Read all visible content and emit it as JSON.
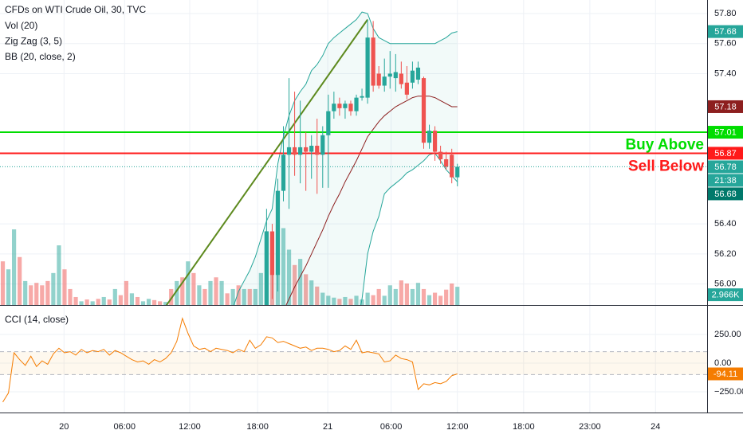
{
  "chart_data": [
    {
      "type": "candlestick",
      "title": "CFDs on WTI Crude Oil, 30, TVC",
      "indicators": [
        "Vol (20)",
        "Zig Zag (3, 5)",
        "BB (20, close, 2)"
      ],
      "x": [
        0,
        1,
        2,
        3,
        4,
        5,
        6,
        7,
        8,
        9,
        10,
        11,
        12,
        13,
        14,
        15,
        16,
        17,
        18,
        19,
        20,
        21,
        22,
        23,
        24,
        25,
        26,
        27,
        28,
        29,
        30,
        31,
        32,
        33,
        34,
        35,
        36,
        37,
        38,
        39,
        40,
        41,
        42,
        43,
        44,
        45,
        46,
        47,
        48,
        49,
        50,
        51,
        52,
        53,
        54,
        55,
        56,
        57,
        58,
        59,
        60,
        61,
        62,
        63,
        64,
        65,
        66,
        67,
        68,
        69,
        70,
        71,
        72,
        73,
        74,
        75,
        76,
        77,
        78,
        79,
        80,
        81
      ],
      "xlim": [
        -0.5,
        125.5
      ],
      "ylim": [
        55.86,
        57.89
      ],
      "yticks": [
        {
          "value": 57.8,
          "label": "57.80"
        },
        {
          "value": 57.6,
          "label": "57.60"
        },
        {
          "value": 57.4,
          "label": "57.40"
        },
        {
          "value": 56.4,
          "label": "56.40"
        },
        {
          "value": 56.2,
          "label": "56.20"
        },
        {
          "value": 56,
          "label": "56.00"
        }
      ],
      "grid": true,
      "candles": {
        "x": [
          47,
          48,
          49,
          50,
          51,
          52,
          53,
          54,
          55,
          56,
          57,
          58,
          59,
          60,
          61,
          62,
          63,
          64,
          65,
          66,
          67,
          68,
          69,
          70,
          71,
          72,
          73,
          74,
          75,
          76,
          77,
          78,
          79,
          80,
          81
        ],
        "open": [
          55.85,
          56.35,
          56.06,
          56.62,
          56.86,
          56.91,
          56.86,
          56.91,
          56.88,
          56.92,
          56.86,
          56.99,
          57.15,
          57.2,
          57.17,
          57.2,
          57.15,
          57.24,
          57.24,
          57.64,
          57.4,
          57.32,
          57.38,
          57.37,
          57.4,
          57.34,
          57.34,
          57.36,
          57.37,
          56.94,
          57.02,
          56.88,
          56.83,
          56.86,
          56.71
        ],
        "high": [
          56.5,
          56.4,
          56.7,
          57.05,
          57.37,
          57.28,
          57.22,
          57.01,
          56.99,
          57.1,
          57.05,
          57.26,
          57.28,
          57.24,
          57.22,
          57.22,
          57.26,
          57.3,
          57.76,
          57.75,
          57.45,
          57.5,
          57.55,
          57.53,
          57.48,
          57.45,
          57.48,
          57.48,
          57.38,
          57.06,
          57.05,
          56.92,
          56.88,
          56.9,
          56.8
        ],
        "low": [
          55.8,
          55.9,
          55.95,
          56.55,
          56.5,
          56.72,
          56.67,
          56.62,
          56.7,
          56.6,
          56.64,
          56.64,
          57.1,
          57.12,
          57.1,
          57.12,
          57.12,
          57.22,
          57.2,
          57.28,
          57.3,
          57.28,
          57.3,
          57.28,
          57.3,
          57.23,
          57.3,
          57.33,
          56.9,
          56.9,
          56.82,
          56.8,
          56.76,
          56.67,
          56.65
        ],
        "close": [
          56.35,
          56.06,
          56.62,
          56.86,
          56.91,
          56.86,
          56.91,
          56.88,
          56.92,
          56.86,
          56.99,
          57.15,
          57.2,
          57.17,
          57.2,
          57.15,
          57.24,
          57.25,
          57.64,
          57.32,
          57.32,
          57.38,
          57.4,
          57.41,
          57.33,
          57.26,
          57.42,
          57.44,
          56.94,
          57.02,
          56.88,
          56.83,
          56.78,
          56.71,
          56.78
        ],
        "up_color": "#26a69a",
        "down_color": "#ef5350"
      },
      "volume": {
        "values": [
          7.1,
          5.8,
          12.3,
          7.8,
          3.9,
          3.2,
          3.6,
          3.2,
          3.9,
          5.2,
          9.7,
          5.8,
          2.6,
          1.3,
          0.6,
          0.9,
          0.6,
          1.0,
          1.3,
          0.9,
          2.6,
          1.6,
          3.9,
          1.9,
          1.3,
          0.6,
          1.0,
          0.8,
          0.6,
          0.5,
          2.6,
          3.9,
          4.5,
          7.1,
          5.2,
          3.2,
          2.6,
          3.9,
          4.5,
          3.9,
          1.9,
          2.6,
          3.2,
          2.6,
          2.6,
          2.6,
          5.2,
          12.0,
          11.0,
          13.0,
          12.5,
          9.0,
          6.5,
          7.5,
          5.0,
          4.0,
          3.0,
          2.0,
          1.5,
          1.2,
          1.0,
          1.3,
          1.0,
          1.5,
          0.9,
          2.0,
          1.6,
          2.6,
          1.5,
          3.2,
          2.6,
          4.0,
          3.5,
          2.6,
          3.6,
          2.6,
          1.6,
          2.0,
          1.5,
          2.5,
          3.5,
          2.966
        ],
        "up": [
          false,
          true,
          true,
          false,
          true,
          false,
          false,
          false,
          false,
          true,
          true,
          false,
          false,
          false,
          true,
          false,
          true,
          false,
          true,
          false,
          true,
          false,
          false,
          true,
          false,
          true,
          true,
          false,
          false,
          true,
          false,
          true,
          false,
          true,
          false,
          true,
          false,
          true,
          false,
          true,
          false,
          true,
          false,
          true,
          false,
          true,
          true,
          true,
          false,
          true,
          true,
          true,
          false,
          true,
          false,
          true,
          false,
          true,
          true,
          true,
          false,
          true,
          false,
          true,
          true,
          true,
          false,
          false,
          true,
          true,
          true,
          false,
          false,
          true,
          true,
          false,
          true,
          false,
          false,
          false,
          false,
          true
        ],
        "last_label": "2.966K",
        "ylim": [
          0,
          49.6
        ]
      },
      "bb": {
        "upper": [
          null,
          null,
          null,
          null,
          null,
          null,
          null,
          null,
          null,
          null,
          null,
          null,
          null,
          null,
          null,
          null,
          null,
          null,
          null,
          null,
          null,
          null,
          null,
          null,
          null,
          null,
          null,
          null,
          null,
          null,
          null,
          null,
          null,
          null,
          null,
          null,
          null,
          null,
          null,
          null,
          55.75,
          55.84,
          55.95,
          56.02,
          56.09,
          56.18,
          56.3,
          56.42,
          56.5,
          56.8,
          56.98,
          57.12,
          57.22,
          57.28,
          57.33,
          57.42,
          57.46,
          57.52,
          57.6,
          57.64,
          57.67,
          57.7,
          57.73,
          57.76,
          57.81,
          57.8,
          57.7,
          57.64,
          57.62,
          57.6,
          57.6,
          57.6,
          57.6,
          57.6,
          57.6,
          57.6,
          57.6,
          57.6,
          57.62,
          57.64,
          57.67,
          57.68
        ],
        "middle": [
          null,
          null,
          null,
          null,
          null,
          null,
          null,
          null,
          null,
          null,
          null,
          null,
          null,
          null,
          null,
          null,
          null,
          null,
          null,
          null,
          null,
          null,
          null,
          null,
          null,
          null,
          null,
          null,
          null,
          null,
          null,
          null,
          null,
          null,
          null,
          null,
          null,
          null,
          null,
          null,
          null,
          null,
          null,
          null,
          null,
          null,
          null,
          null,
          null,
          null,
          55.82,
          55.9,
          55.98,
          56.05,
          56.12,
          56.2,
          56.28,
          56.36,
          56.45,
          56.53,
          56.6,
          56.68,
          56.75,
          56.82,
          56.9,
          56.98,
          57.03,
          57.08,
          57.12,
          57.15,
          57.18,
          57.2,
          57.22,
          57.24,
          57.25,
          57.25,
          57.25,
          57.24,
          57.22,
          57.2,
          57.18,
          57.18
        ],
        "lower": [
          null,
          null,
          null,
          null,
          null,
          null,
          null,
          null,
          null,
          null,
          null,
          null,
          null,
          null,
          null,
          null,
          null,
          null,
          null,
          null,
          null,
          null,
          null,
          null,
          null,
          null,
          null,
          null,
          null,
          null,
          null,
          null,
          null,
          null,
          null,
          null,
          null,
          null,
          null,
          null,
          null,
          null,
          null,
          null,
          null,
          null,
          null,
          null,
          null,
          null,
          null,
          null,
          null,
          null,
          null,
          null,
          null,
          null,
          null,
          null,
          null,
          null,
          null,
          55.7,
          55.9,
          56.2,
          56.35,
          56.45,
          56.6,
          56.64,
          56.67,
          56.7,
          56.74,
          56.76,
          56.79,
          56.82,
          56.86,
          56.87,
          56.82,
          56.76,
          56.72,
          56.68
        ],
        "band_color": "#26a69a",
        "middle_color": "#8d1f1f"
      },
      "zigzag": {
        "x": [
          29,
          65
        ],
        "values": [
          55.85,
          57.76
        ],
        "color": "#5d8a1e"
      },
      "levels": [
        {
          "value": 57.01,
          "label": "Buy Above",
          "color": "#00dd00"
        },
        {
          "value": 56.87,
          "label": "Sell Below",
          "color": "#ff1a1a"
        }
      ],
      "countdown": "21:38"
    },
    {
      "type": "line",
      "title": "CCI (14, close)",
      "x": [
        0,
        1,
        2,
        3,
        4,
        5,
        6,
        7,
        8,
        9,
        10,
        11,
        12,
        13,
        14,
        15,
        16,
        17,
        18,
        19,
        20,
        21,
        22,
        23,
        24,
        25,
        26,
        27,
        28,
        29,
        30,
        31,
        32,
        33,
        34,
        35,
        36,
        37,
        38,
        39,
        40,
        41,
        42,
        43,
        44,
        45,
        46,
        47,
        48,
        49,
        50,
        51,
        52,
        53,
        54,
        55,
        56,
        57,
        58,
        59,
        60,
        61,
        62,
        63,
        64,
        65,
        66,
        67,
        68,
        69,
        70,
        71,
        72,
        73,
        74,
        75,
        76,
        77,
        78,
        79,
        80,
        81
      ],
      "values": [
        -340,
        -260,
        90,
        30,
        -20,
        60,
        -30,
        20,
        -10,
        80,
        130,
        90,
        100,
        70,
        120,
        90,
        110,
        100,
        120,
        70,
        110,
        90,
        60,
        30,
        10,
        20,
        -10,
        30,
        10,
        40,
        90,
        190,
        390,
        260,
        150,
        120,
        130,
        100,
        130,
        120,
        110,
        90,
        120,
        100,
        200,
        130,
        160,
        230,
        220,
        180,
        190,
        170,
        150,
        130,
        140,
        110,
        130,
        130,
        120,
        100,
        110,
        150,
        120,
        200,
        90,
        100,
        90,
        80,
        10,
        20,
        70,
        40,
        30,
        10,
        -230,
        -180,
        -190,
        -170,
        -180,
        -160,
        -110,
        -94.11
      ],
      "color": "#f57c00",
      "band": [
        -100,
        100
      ],
      "xlim": [
        -0.5,
        125.5
      ],
      "ylim": [
        -431,
        493
      ],
      "yticks": [
        {
          "value": 250,
          "label": "250.00"
        },
        {
          "value": 0,
          "label": "0.00"
        },
        {
          "value": -250,
          "label": "−250.00"
        }
      ],
      "xticks": [
        {
          "value": 10.9,
          "label": "20"
        },
        {
          "value": 21.7,
          "label": "06:00"
        },
        {
          "value": 33.3,
          "label": "12:00"
        },
        {
          "value": 45.4,
          "label": "18:00"
        },
        {
          "value": 57.9,
          "label": "21"
        },
        {
          "value": 69.2,
          "label": "06:00"
        },
        {
          "value": 81,
          "label": "12:00"
        },
        {
          "value": 92.8,
          "label": "18:00"
        },
        {
          "value": 104.6,
          "label": "23:00"
        },
        {
          "value": 116.3,
          "label": "24"
        }
      ]
    }
  ]
}
